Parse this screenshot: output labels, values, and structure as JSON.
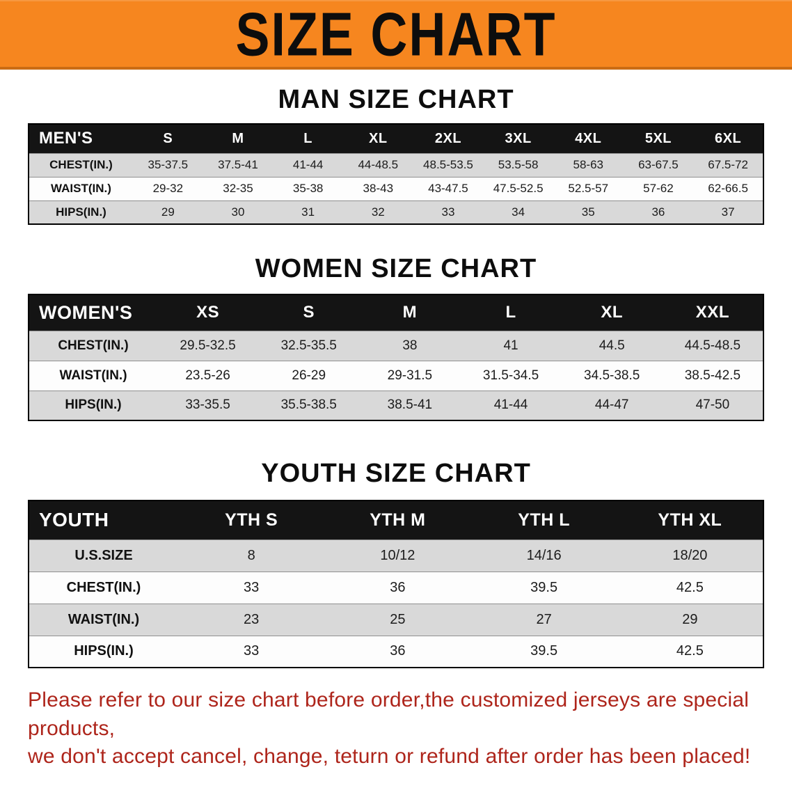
{
  "banner": {
    "title": "SIZE CHART"
  },
  "colors": {
    "banner-orange": "#F6861F",
    "header-black": "#141414",
    "stripe-gray": "#d9d9d9",
    "note-red": "#AE251B"
  },
  "sections": [
    {
      "heading": "MAN SIZE CHART",
      "table": {
        "header": [
          "MEN'S",
          "S",
          "M",
          "L",
          "XL",
          "2XL",
          "3XL",
          "4XL",
          "5XL",
          "6XL"
        ],
        "rows": [
          [
            "CHEST(IN.)",
            "35-37.5",
            "37.5-41",
            "41-44",
            "44-48.5",
            "48.5-53.5",
            "53.5-58",
            "58-63",
            "63-67.5",
            "67.5-72"
          ],
          [
            "WAIST(IN.)",
            "29-32",
            "32-35",
            "35-38",
            "38-43",
            "43-47.5",
            "47.5-52.5",
            "52.5-57",
            "57-62",
            "62-66.5"
          ],
          [
            "HIPS(IN.)",
            "29",
            "30",
            "31",
            "32",
            "33",
            "34",
            "35",
            "36",
            "37"
          ]
        ]
      }
    },
    {
      "heading": "WOMEN SIZE CHART",
      "table": {
        "header": [
          "WOMEN'S",
          "XS",
          "S",
          "M",
          "L",
          "XL",
          "XXL"
        ],
        "rows": [
          [
            "CHEST(IN.)",
            "29.5-32.5",
            "32.5-35.5",
            "38",
            "41",
            "44.5",
            "44.5-48.5"
          ],
          [
            "WAIST(IN.)",
            "23.5-26",
            "26-29",
            "29-31.5",
            "31.5-34.5",
            "34.5-38.5",
            "38.5-42.5"
          ],
          [
            "HIPS(IN.)",
            "33-35.5",
            "35.5-38.5",
            "38.5-41",
            "41-44",
            "44-47",
            "47-50"
          ]
        ]
      }
    },
    {
      "heading": "YOUTH SIZE CHART",
      "table": {
        "header": [
          "YOUTH",
          "YTH S",
          "YTH M",
          "YTH L",
          "YTH XL"
        ],
        "rows": [
          [
            "U.S.SIZE",
            "8",
            "10/12",
            "14/16",
            "18/20"
          ],
          [
            "CHEST(IN.)",
            "33",
            "36",
            "39.5",
            "42.5"
          ],
          [
            "WAIST(IN.)",
            "23",
            "25",
            "27",
            "29"
          ],
          [
            "HIPS(IN.)",
            "33",
            "36",
            "39.5",
            "42.5"
          ]
        ]
      }
    }
  ],
  "footer": {
    "lines": [
      "Please refer to our size chart before order,the customized jerseys are special products,",
      "we don't accept cancel, change, teturn or refund after order has been placed!"
    ]
  }
}
